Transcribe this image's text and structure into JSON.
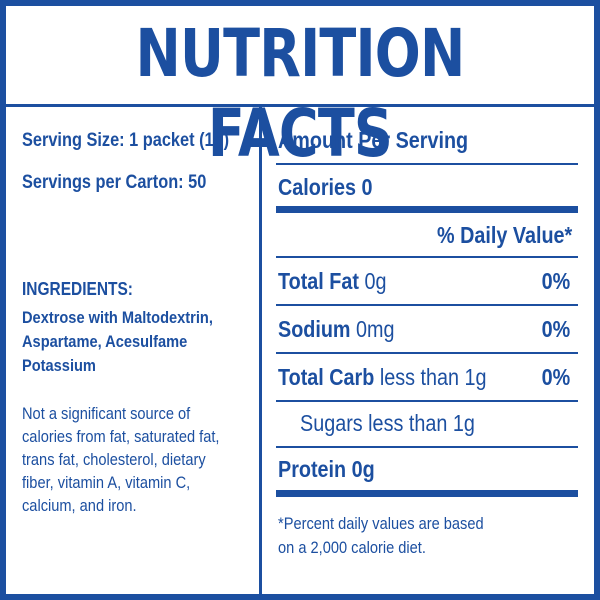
{
  "title": "NUTRITION FACTS",
  "left": {
    "serving_size": "Serving Size: 1 packet (1g)",
    "servings_per_carton": "Servings per Carton: 50",
    "ingredients_heading": "INGREDIENTS:",
    "ingredients_lines": [
      "Dextrose with Maltodextrin,",
      "Aspartame, Acesulfame",
      "Potassium"
    ],
    "note_lines": [
      "Not a significant source of",
      "calories from fat, saturated fat,",
      "trans fat, cholesterol, dietary",
      "fiber, vitamin A, vitamin C,",
      "calcium, and iron."
    ]
  },
  "right": {
    "amount_per_serving": "Amount Per Serving",
    "calories": "Calories 0",
    "daily_value_header": "% Daily Value*",
    "rows": [
      {
        "label": "Total Fat",
        "amount": "0g",
        "pct": "0%"
      },
      {
        "label": "Sodium",
        "amount": "0mg",
        "pct": "0%"
      },
      {
        "label": "Total Carb",
        "amount": "less than 1g",
        "pct": "0%"
      }
    ],
    "sugars": "Sugars less than 1g",
    "protein": "Protein 0g",
    "footnote_lines": [
      "*Percent daily values are based",
      "on a 2,000 calorie diet."
    ]
  },
  "colors": {
    "brand_blue": "#1c4fa0",
    "background": "#ffffff"
  }
}
